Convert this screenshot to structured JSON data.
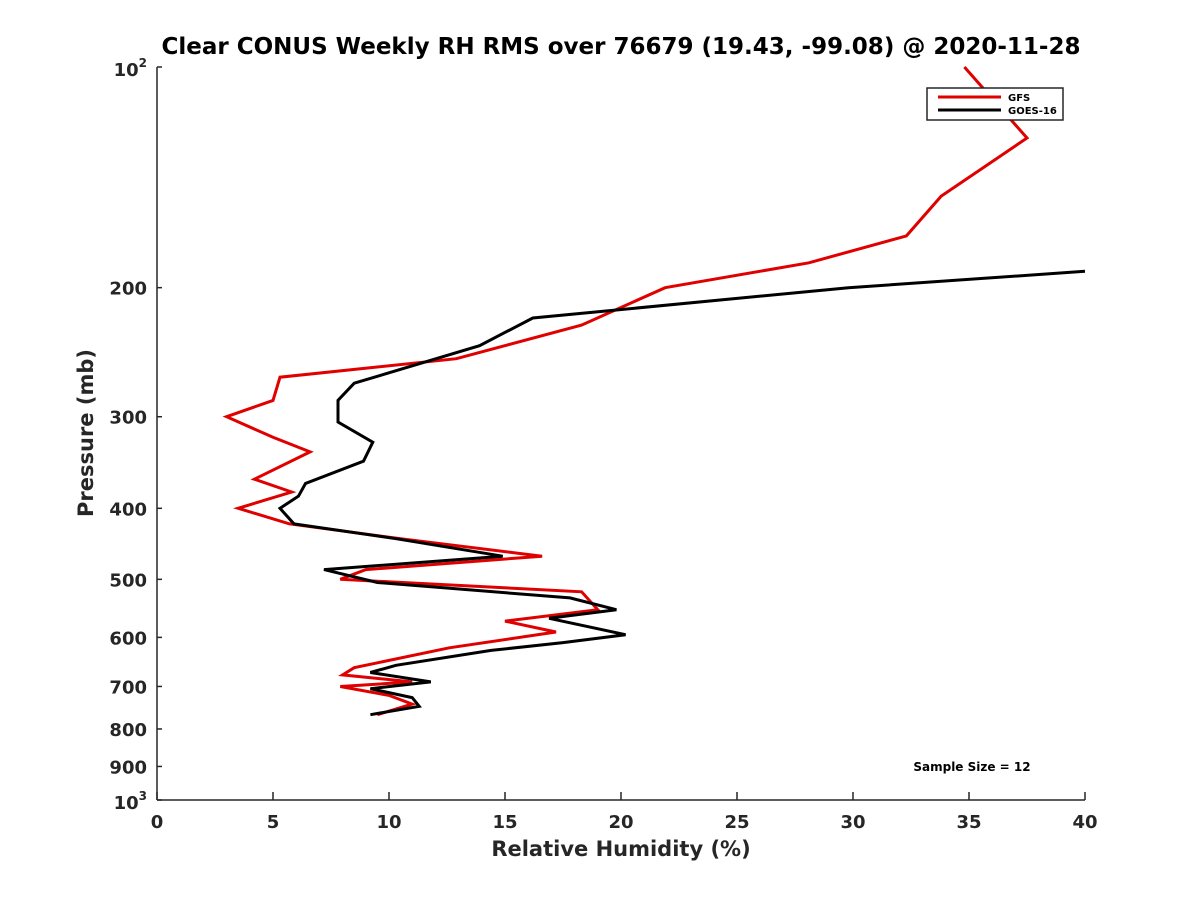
{
  "chart_data": {
    "type": "line",
    "title": "Clear CONUS Weekly RH RMS over 76679 (19.43, -99.08) @ 2020-11-28",
    "xlabel": "Relative Humidity (%)",
    "ylabel": "Pressure (mb)",
    "xlim": [
      0,
      40
    ],
    "ylim": [
      100,
      1000
    ],
    "y_scale": "log",
    "y_reversed": true,
    "grid": false,
    "legend_position": "top-right",
    "x_ticks": [
      "0",
      "5",
      "10",
      "15",
      "20",
      "25",
      "30",
      "35",
      "40"
    ],
    "y_ticks": [
      {
        "value": 100,
        "base": "10",
        "exp": "2"
      },
      {
        "value": 200,
        "label": "200"
      },
      {
        "value": 300,
        "label": "300"
      },
      {
        "value": 400,
        "label": "400"
      },
      {
        "value": 500,
        "label": "500"
      },
      {
        "value": 600,
        "label": "600"
      },
      {
        "value": 700,
        "label": "700"
      },
      {
        "value": 800,
        "label": "800"
      },
      {
        "value": 900,
        "label": "900"
      },
      {
        "value": 1000,
        "base": "10",
        "exp": "3"
      }
    ],
    "annotation": "Sample Size = 12",
    "series": [
      {
        "name": "GFS",
        "color": "#e00000",
        "points": [
          [
            34.8,
            100
          ],
          [
            37.5,
            125
          ],
          [
            33.8,
            150
          ],
          [
            32.3,
            170
          ],
          [
            28.1,
            185
          ],
          [
            21.9,
            200
          ],
          [
            18.3,
            225
          ],
          [
            12.9,
            250
          ],
          [
            5.3,
            265
          ],
          [
            5.0,
            285
          ],
          [
            3.0,
            300
          ],
          [
            5.0,
            320
          ],
          [
            6.6,
            335
          ],
          [
            4.2,
            365
          ],
          [
            5.8,
            380
          ],
          [
            3.5,
            400
          ],
          [
            5.7,
            420
          ],
          [
            10.5,
            440
          ],
          [
            16.6,
            465
          ],
          [
            9.0,
            485
          ],
          [
            7.9,
            500
          ],
          [
            18.3,
            520
          ],
          [
            19.0,
            550
          ],
          [
            15.0,
            570
          ],
          [
            17.2,
            590
          ],
          [
            12.6,
            620
          ],
          [
            8.5,
            660
          ],
          [
            8.0,
            675
          ],
          [
            11.0,
            690
          ],
          [
            7.9,
            700
          ],
          [
            10.0,
            720
          ],
          [
            11.0,
            740
          ],
          [
            9.5,
            765
          ]
        ]
      },
      {
        "name": "GOES-16",
        "color": "#000000",
        "points": [
          [
            40.0,
            190
          ],
          [
            29.8,
            200
          ],
          [
            16.2,
            220
          ],
          [
            13.9,
            240
          ],
          [
            8.5,
            270
          ],
          [
            7.8,
            285
          ],
          [
            7.8,
            305
          ],
          [
            9.3,
            325
          ],
          [
            8.9,
            345
          ],
          [
            6.4,
            370
          ],
          [
            6.1,
            385
          ],
          [
            5.3,
            400
          ],
          [
            5.9,
            420
          ],
          [
            10.3,
            440
          ],
          [
            14.9,
            465
          ],
          [
            7.2,
            485
          ],
          [
            9.5,
            505
          ],
          [
            17.8,
            530
          ],
          [
            19.8,
            550
          ],
          [
            16.9,
            565
          ],
          [
            20.2,
            595
          ],
          [
            17.5,
            610
          ],
          [
            14.4,
            625
          ],
          [
            10.3,
            655
          ],
          [
            9.2,
            670
          ],
          [
            11.8,
            690
          ],
          [
            9.2,
            705
          ],
          [
            11.0,
            725
          ],
          [
            11.3,
            745
          ],
          [
            9.2,
            765
          ]
        ]
      }
    ]
  }
}
